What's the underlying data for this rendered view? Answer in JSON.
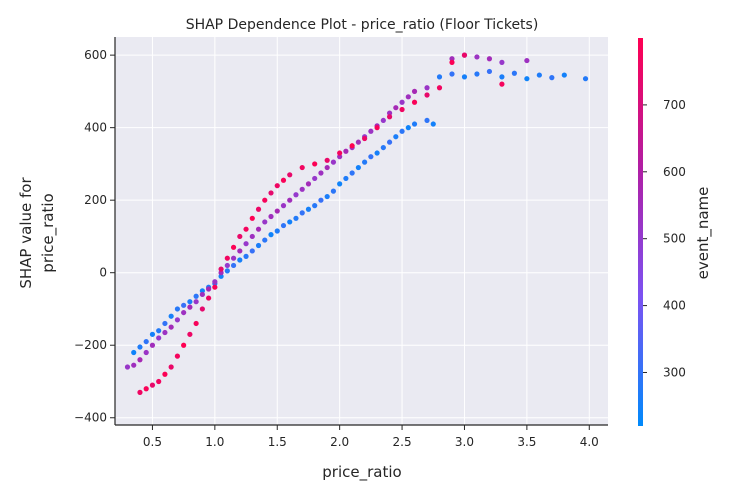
{
  "chart_data": {
    "type": "scatter",
    "title": "SHAP Dependence Plot - price_ratio (Floor Tickets)",
    "xlabel": "price_ratio",
    "ylabel_lines": [
      "SHAP value for",
      "price_ratio"
    ],
    "xlim": [
      0.2,
      4.15
    ],
    "ylim": [
      -420,
      650
    ],
    "xticks": [
      0.5,
      1.0,
      1.5,
      2.0,
      2.5,
      3.0,
      3.5,
      4.0
    ],
    "xtick_labels": [
      "0.5",
      "1.0",
      "1.5",
      "2.0",
      "2.5",
      "3.0",
      "3.5",
      "4.0"
    ],
    "yticks": [
      -400,
      -200,
      0,
      200,
      400,
      600
    ],
    "ytick_labels": [
      "−400",
      "−200",
      "0",
      "200",
      "400",
      "600"
    ],
    "grid": true,
    "background": "#eaeaf2",
    "colorbar": {
      "label": "event_name",
      "range": [
        220,
        800
      ],
      "ticks": [
        300,
        400,
        500,
        600,
        700
      ],
      "tick_labels": [
        "300",
        "400",
        "500",
        "600",
        "700"
      ],
      "colormap": [
        "#008afb",
        "#7c52f2",
        "#b11ea4",
        "#ff0052"
      ]
    },
    "series": [
      {
        "color_value_low": 300,
        "points": [
          [
            0.35,
            -220
          ],
          [
            0.4,
            -205
          ],
          [
            0.45,
            -190
          ],
          [
            0.5,
            -170
          ],
          [
            0.55,
            -160
          ],
          [
            0.6,
            -140
          ],
          [
            0.65,
            -120
          ],
          [
            0.7,
            -100
          ],
          [
            0.75,
            -90
          ],
          [
            0.8,
            -80
          ],
          [
            0.85,
            -65
          ],
          [
            0.9,
            -50
          ],
          [
            0.95,
            -40
          ],
          [
            1.0,
            -30
          ],
          [
            1.05,
            -10
          ],
          [
            1.1,
            5
          ],
          [
            1.15,
            20
          ],
          [
            1.2,
            35
          ],
          [
            1.25,
            45
          ],
          [
            1.3,
            60
          ],
          [
            1.35,
            75
          ],
          [
            1.4,
            90
          ],
          [
            1.45,
            105
          ],
          [
            1.5,
            115
          ],
          [
            1.55,
            130
          ],
          [
            1.6,
            140
          ],
          [
            1.65,
            150
          ],
          [
            1.7,
            165
          ],
          [
            1.75,
            175
          ],
          [
            1.8,
            185
          ],
          [
            1.85,
            200
          ],
          [
            1.9,
            210
          ],
          [
            1.95,
            225
          ],
          [
            2.0,
            245
          ],
          [
            2.05,
            260
          ],
          [
            2.1,
            275
          ],
          [
            2.15,
            290
          ],
          [
            2.2,
            305
          ],
          [
            2.25,
            320
          ],
          [
            2.3,
            330
          ],
          [
            2.35,
            345
          ],
          [
            2.4,
            360
          ],
          [
            2.45,
            375
          ],
          [
            2.5,
            390
          ],
          [
            2.55,
            400
          ],
          [
            2.6,
            410
          ],
          [
            2.7,
            420
          ],
          [
            2.75,
            410
          ],
          [
            2.8,
            540
          ],
          [
            2.9,
            548
          ],
          [
            3.0,
            540
          ],
          [
            3.1,
            548
          ],
          [
            3.2,
            555
          ],
          [
            3.3,
            540
          ],
          [
            3.4,
            550
          ],
          [
            3.5,
            535
          ],
          [
            3.6,
            545
          ],
          [
            3.7,
            538
          ],
          [
            3.8,
            545
          ],
          [
            3.97,
            535
          ]
        ]
      },
      {
        "color_value_mid": 500,
        "points": [
          [
            0.3,
            -260
          ],
          [
            0.35,
            -255
          ],
          [
            0.4,
            -240
          ],
          [
            0.45,
            -220
          ],
          [
            0.5,
            -200
          ],
          [
            0.55,
            -180
          ],
          [
            0.6,
            -165
          ],
          [
            0.65,
            -150
          ],
          [
            0.7,
            -130
          ],
          [
            0.75,
            -110
          ],
          [
            0.8,
            -95
          ],
          [
            0.85,
            -80
          ],
          [
            0.9,
            -60
          ],
          [
            0.95,
            -45
          ],
          [
            1.0,
            -25
          ],
          [
            1.05,
            0
          ],
          [
            1.1,
            20
          ],
          [
            1.15,
            40
          ],
          [
            1.2,
            60
          ],
          [
            1.25,
            80
          ],
          [
            1.3,
            100
          ],
          [
            1.35,
            120
          ],
          [
            1.4,
            140
          ],
          [
            1.45,
            155
          ],
          [
            1.5,
            170
          ],
          [
            1.55,
            185
          ],
          [
            1.6,
            200
          ],
          [
            1.65,
            215
          ],
          [
            1.7,
            230
          ],
          [
            1.75,
            245
          ],
          [
            1.8,
            260
          ],
          [
            1.85,
            275
          ],
          [
            1.9,
            290
          ],
          [
            1.95,
            305
          ],
          [
            2.0,
            320
          ],
          [
            2.05,
            335
          ],
          [
            2.1,
            345
          ],
          [
            2.15,
            360
          ],
          [
            2.2,
            375
          ],
          [
            2.25,
            390
          ],
          [
            2.3,
            405
          ],
          [
            2.35,
            420
          ],
          [
            2.4,
            440
          ],
          [
            2.45,
            455
          ],
          [
            2.5,
            470
          ],
          [
            2.55,
            485
          ],
          [
            2.6,
            500
          ],
          [
            2.7,
            510
          ],
          [
            2.9,
            590
          ],
          [
            3.0,
            600
          ],
          [
            3.1,
            595
          ],
          [
            3.2,
            590
          ],
          [
            3.3,
            580
          ],
          [
            3.5,
            585
          ]
        ]
      },
      {
        "color_value_high": 700,
        "points": [
          [
            0.4,
            -330
          ],
          [
            0.45,
            -320
          ],
          [
            0.5,
            -310
          ],
          [
            0.55,
            -300
          ],
          [
            0.6,
            -280
          ],
          [
            0.65,
            -260
          ],
          [
            0.7,
            -230
          ],
          [
            0.75,
            -200
          ],
          [
            0.8,
            -170
          ],
          [
            0.85,
            -140
          ],
          [
            0.9,
            -100
          ],
          [
            0.95,
            -70
          ],
          [
            1.0,
            -40
          ],
          [
            1.05,
            10
          ],
          [
            1.1,
            40
          ],
          [
            1.15,
            70
          ],
          [
            1.2,
            100
          ],
          [
            1.25,
            120
          ],
          [
            1.3,
            150
          ],
          [
            1.35,
            175
          ],
          [
            1.4,
            200
          ],
          [
            1.45,
            220
          ],
          [
            1.5,
            240
          ],
          [
            1.55,
            255
          ],
          [
            1.6,
            270
          ],
          [
            1.7,
            290
          ],
          [
            1.8,
            300
          ],
          [
            1.9,
            310
          ],
          [
            2.0,
            330
          ],
          [
            2.1,
            350
          ],
          [
            2.2,
            370
          ],
          [
            2.3,
            400
          ],
          [
            2.4,
            430
          ],
          [
            2.5,
            450
          ],
          [
            2.6,
            470
          ],
          [
            2.7,
            490
          ],
          [
            2.8,
            510
          ],
          [
            2.9,
            580
          ],
          [
            3.0,
            600
          ],
          [
            3.3,
            520
          ]
        ]
      }
    ]
  }
}
